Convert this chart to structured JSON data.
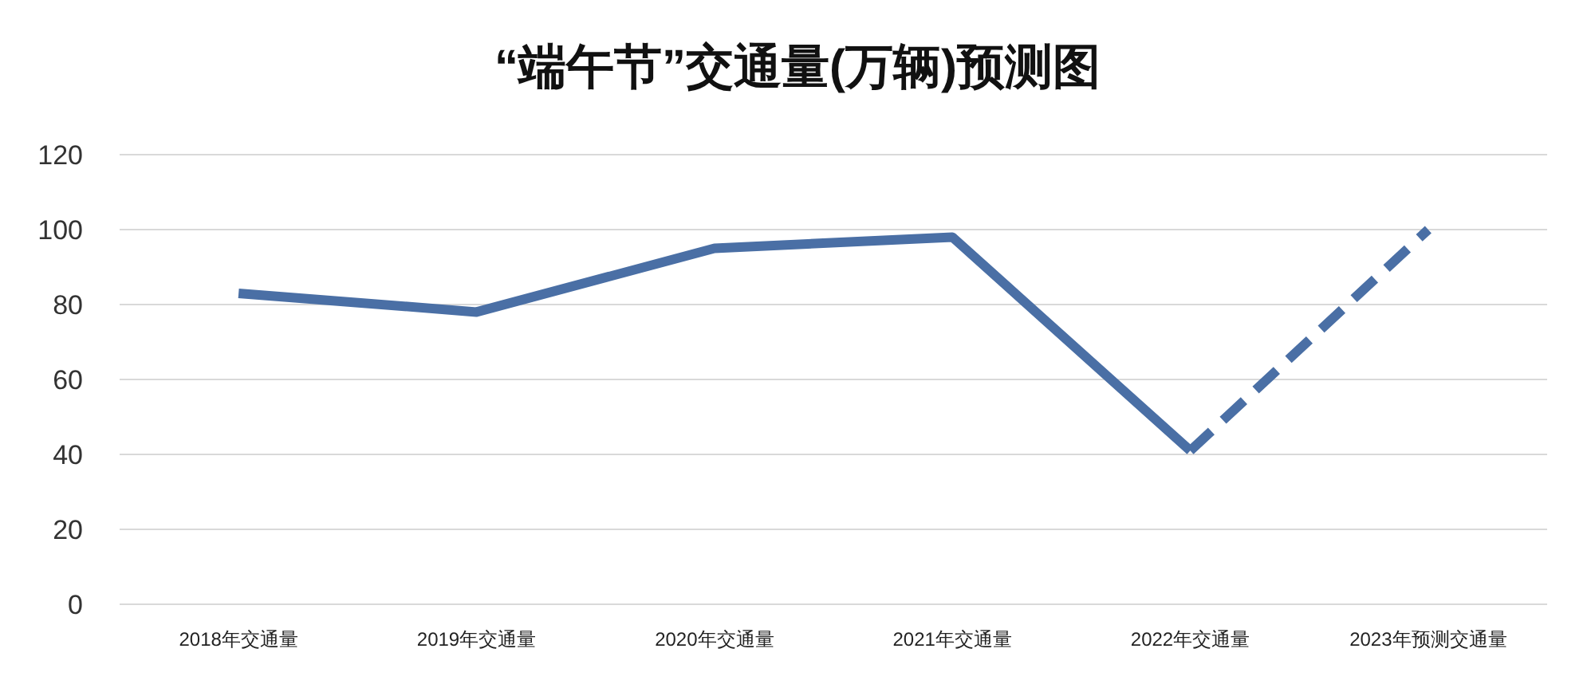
{
  "chart_data": {
    "type": "line",
    "title": "“端午节”交通量(万辆)预测图",
    "categories": [
      "2018年交通量",
      "2019年交通量",
      "2020年交通量",
      "2021年交通量",
      "2022年交通量",
      "2023年预测交通量"
    ],
    "series": [
      {
        "color": "#4a6fa5",
        "values": [
          83,
          78,
          95,
          98,
          41,
          null
        ],
        "line_style": "solid"
      },
      {
        "color": "#4a6fa5",
        "values": [
          null,
          null,
          null,
          null,
          41,
          100
        ],
        "line_style": "dashed"
      }
    ],
    "ylim": [
      0,
      120
    ],
    "yticks": [
      0,
      20,
      40,
      60,
      80,
      100,
      120
    ],
    "grid": "y",
    "marker": "none"
  }
}
